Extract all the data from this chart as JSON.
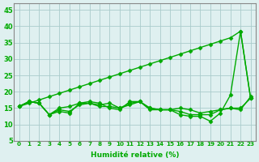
{
  "title": "",
  "xlabel": "Humidité relative (%)",
  "ylabel": "",
  "bg_color": "#dff0f0",
  "grid_color": "#aacccc",
  "line_color": "#00aa00",
  "marker": "D",
  "markersize": 2.5,
  "linewidth": 1.0,
  "xlim": [
    -0.5,
    23.5
  ],
  "ylim": [
    5,
    47
  ],
  "yticks": [
    5,
    10,
    15,
    20,
    25,
    30,
    35,
    40,
    45
  ],
  "xtick_labels": [
    "0",
    "1",
    "2",
    "3",
    "4",
    "5",
    "6",
    "7",
    "8",
    "9",
    "10",
    "11",
    "12",
    "13",
    "14",
    "15",
    "16",
    "17",
    "18",
    "19",
    "20",
    "21",
    "22",
    "23"
  ],
  "series": [
    [
      15.5,
      17.0,
      16.5,
      13.0,
      14.0,
      13.5,
      16.5,
      17.0,
      16.5,
      15.0,
      14.5,
      17.0,
      17.0,
      14.5,
      14.5,
      14.5,
      13.0,
      12.5,
      12.5,
      11.0,
      13.5,
      19.0,
      38.5,
      18.0
    ],
    [
      15.5,
      17.0,
      16.5,
      13.0,
      14.5,
      14.0,
      16.0,
      16.5,
      15.5,
      15.5,
      15.0,
      16.0,
      17.0,
      15.0,
      14.5,
      14.5,
      14.0,
      13.0,
      13.0,
      13.0,
      14.5,
      15.0,
      15.0,
      18.0
    ],
    [
      15.5,
      17.0,
      16.5,
      13.0,
      15.0,
      15.5,
      16.5,
      16.5,
      16.0,
      16.5,
      15.0,
      16.5,
      17.0,
      15.0,
      14.5,
      14.5,
      15.0,
      14.5,
      13.5,
      14.0,
      14.5,
      15.0,
      14.5,
      18.5
    ],
    [
      15.5,
      16.5,
      17.5,
      18.5,
      19.5,
      20.5,
      21.5,
      22.5,
      23.5,
      24.5,
      25.5,
      26.5,
      27.5,
      28.5,
      29.5,
      30.5,
      31.5,
      32.5,
      33.5,
      34.5,
      35.5,
      36.5,
      38.5,
      18.0
    ]
  ]
}
